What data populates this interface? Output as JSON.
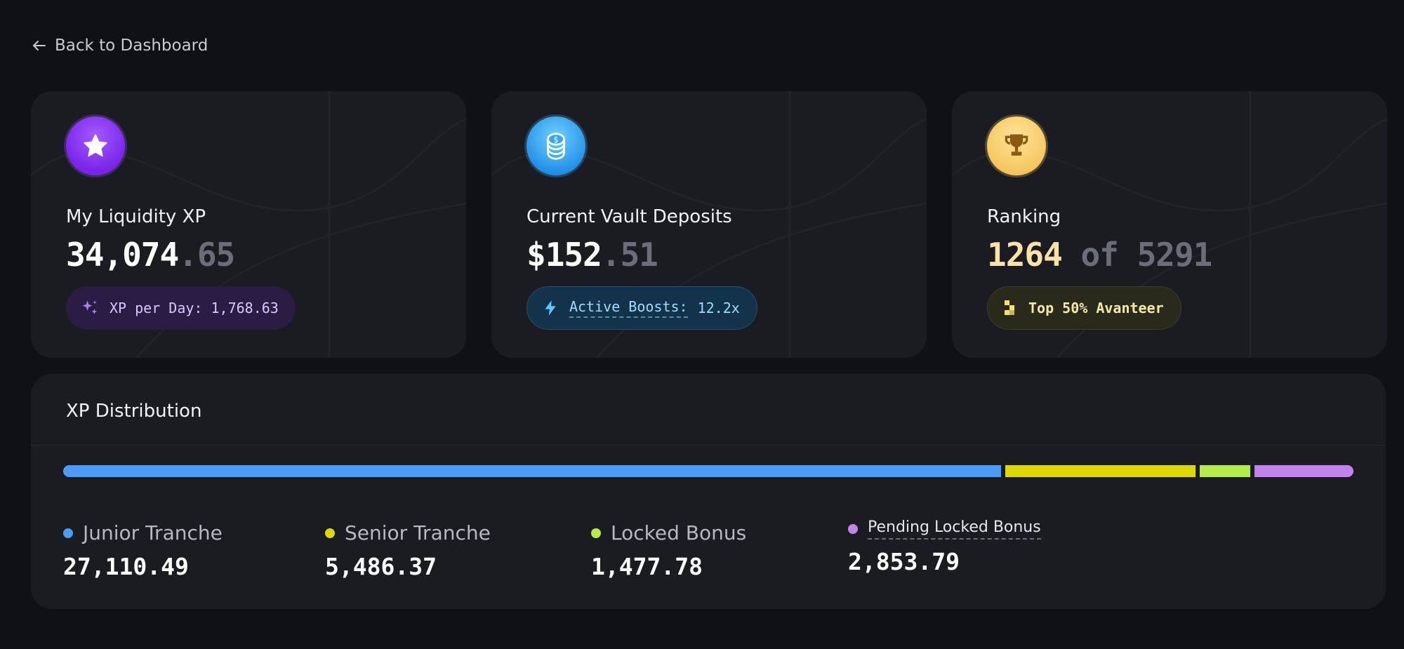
{
  "nav": {
    "back_label": "Back to Dashboard",
    "back_icon": "arrow-left-icon"
  },
  "cards": [
    {
      "icon": "star-icon",
      "title": "My Liquidity XP",
      "value_main": "34,074",
      "value_fraction": ".65",
      "pill_icon": "sparkle-icon",
      "pill_text": "XP per Day: 1,768.63"
    },
    {
      "icon": "coins-icon",
      "title": "Current Vault Deposits",
      "value_main": "$152",
      "value_fraction": ".51",
      "pill_icon": "lightning-icon",
      "pill_label": "Active Boosts:",
      "pill_value": "12.2x"
    },
    {
      "icon": "trophy-icon",
      "title": "Ranking",
      "rank": "1264",
      "rank_of": "of 5291",
      "pill_icon": "grid-blocks-icon",
      "pill_text": "Top 50% Avanteer"
    }
  ],
  "distribution": {
    "title": "XP Distribution",
    "segments": [
      {
        "name": "Junior Tranche",
        "value": "27,110.49",
        "amount": 27110.49,
        "color": "#4a9cf6"
      },
      {
        "name": "Senior Tranche",
        "value": "5,486.37",
        "amount": 5486.37,
        "color": "#dcd800"
      },
      {
        "name": "Locked Bonus",
        "value": "1,477.78",
        "amount": 1477.78,
        "color": "#b6ec4a"
      },
      {
        "name": "Pending Locked Bonus",
        "value": "2,853.79",
        "amount": 2853.79,
        "color": "#c283ec"
      }
    ]
  }
}
